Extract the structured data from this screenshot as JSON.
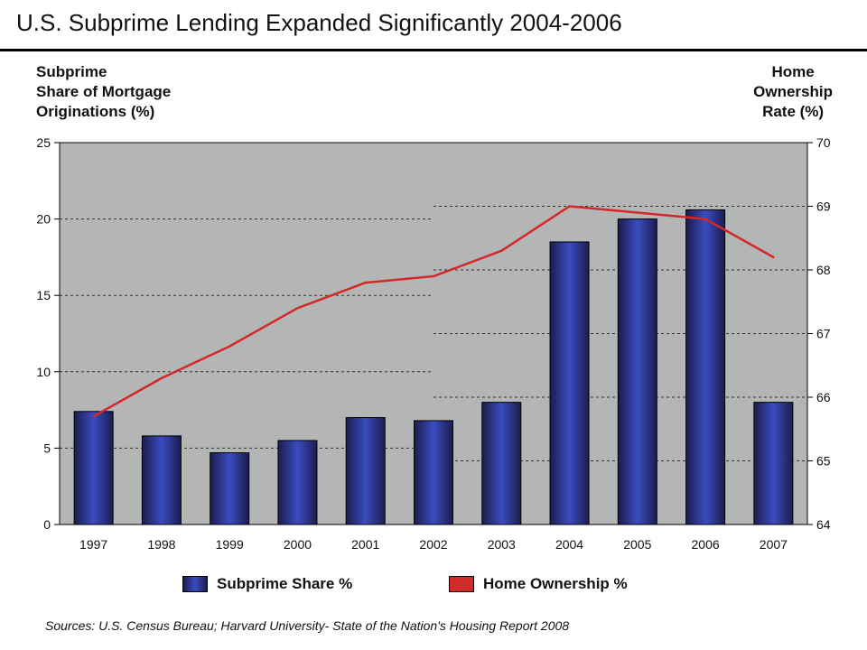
{
  "title": "U.S. Subprime Lending Expanded Significantly 2004-2006",
  "left_axis_title": [
    "Subprime",
    "Share of Mortgage",
    "Originations (%)"
  ],
  "right_axis_title": [
    "Home",
    "Ownership",
    "Rate (%)"
  ],
  "source": "Sources:  U.S. Census Bureau; Harvard University- State of the Nation's Housing Report 2008",
  "colors": {
    "plot_bg": "#b4b6b6",
    "bar_dark": "#1c1c4e",
    "bar_light": "#3a4cc0",
    "line": "#d42828",
    "legend_line": "#d42a2a"
  },
  "chart_data": {
    "type": "bar",
    "title": "U.S. Subprime Lending Expanded Significantly 2004-2006",
    "categories": [
      "1997",
      "1998",
      "1999",
      "2000",
      "2001",
      "2002",
      "2003",
      "2004",
      "2005",
      "2006",
      "2007"
    ],
    "series": [
      {
        "name": "Subprime Share %",
        "type": "bar",
        "axis": "left",
        "values": [
          7.4,
          5.8,
          4.7,
          5.5,
          7.0,
          6.8,
          8.0,
          18.5,
          20.0,
          20.6,
          8.0
        ]
      },
      {
        "name": "Home Ownership %",
        "type": "line",
        "axis": "right",
        "values": [
          65.7,
          66.3,
          66.8,
          67.4,
          67.8,
          67.9,
          68.3,
          69.0,
          68.9,
          68.8,
          68.2
        ]
      }
    ],
    "ylabel": "Subprime Share of Mortgage Originations (%)",
    "y2label": "Home Ownership Rate (%)",
    "ylim": [
      0,
      25
    ],
    "y2lim": [
      64,
      70
    ],
    "yticks": [
      "0",
      "5",
      "10",
      "15",
      "20",
      "25"
    ],
    "y2ticks": [
      "64",
      "65",
      "66",
      "67",
      "68",
      "69",
      "70"
    ],
    "grid": true,
    "legend": "bottom"
  }
}
